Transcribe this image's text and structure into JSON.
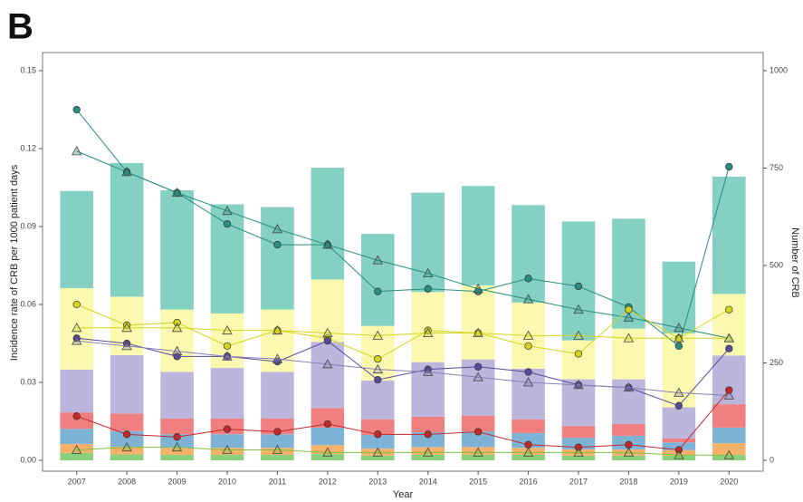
{
  "panel_label": "B",
  "chart_data": {
    "type": "combo",
    "xlabel": "Year",
    "ylabel": "Incidence rate of CRB per 1000 patient days",
    "y2label": "Number of CRB",
    "categories": [
      "2007",
      "2008",
      "2009",
      "2010",
      "2011",
      "2012",
      "2013",
      "2014",
      "2015",
      "2016",
      "2017",
      "2018",
      "2019",
      "2020"
    ],
    "ylim": [
      0,
      0.15
    ],
    "yticks": [
      {
        "value": 0,
        "label": "0.00"
      },
      {
        "value": 0.03,
        "label": "0.03"
      },
      {
        "value": 0.06,
        "label": "0.06"
      },
      {
        "value": 0.09,
        "label": "0.09"
      },
      {
        "value": 0.12,
        "label": "0.12"
      },
      {
        "value": 0.15,
        "label": "0.15"
      }
    ],
    "y2lim": [
      0,
      1000
    ],
    "y2ticks": [
      0,
      250,
      500,
      750,
      1000
    ],
    "bar_series": [
      {
        "color": "#8bd17c",
        "axis": "y2",
        "values": [
          19,
          15,
          14,
          14,
          14,
          16,
          12,
          14,
          14,
          14,
          12,
          12,
          12,
          14
        ]
      },
      {
        "color": "#f6b26b",
        "axis": "y2",
        "values": [
          23,
          20,
          18,
          18,
          18,
          23,
          18,
          20,
          20,
          18,
          16,
          16,
          14,
          30
        ]
      },
      {
        "color": "#7fb3d5",
        "axis": "y2",
        "values": [
          39,
          40,
          35,
          35,
          35,
          45,
          35,
          38,
          40,
          38,
          30,
          35,
          20,
          40
        ]
      },
      {
        "color": "#f08080",
        "axis": "y2",
        "values": [
          42,
          45,
          40,
          40,
          40,
          50,
          40,
          40,
          40,
          35,
          30,
          30,
          10,
          60
        ]
      },
      {
        "color": "#bcb6dc",
        "axis": "y2",
        "values": [
          110,
          150,
          120,
          130,
          120,
          170,
          100,
          140,
          145,
          130,
          120,
          115,
          80,
          125
        ]
      },
      {
        "color": "#fbf9b0",
        "axis": "y2",
        "values": [
          209,
          150,
          160,
          140,
          160,
          160,
          140,
          180,
          190,
          170,
          100,
          130,
          190,
          158
        ]
      },
      {
        "color": "#84d0c2",
        "axis": "y2",
        "values": [
          249,
          343,
          306,
          280,
          263,
          287,
          236,
          255,
          255,
          250,
          305,
          282,
          184,
          301
        ]
      }
    ],
    "line_series": [
      {
        "color": "#2a8c7e",
        "marker": "circle",
        "values": [
          0.135,
          0.111,
          0.103,
          0.091,
          0.083,
          0.083,
          0.065,
          0.066,
          0.065,
          0.07,
          0.067,
          0.059,
          0.044,
          0.113
        ]
      },
      {
        "color": "#2a8c7e",
        "marker": "triangle",
        "values": [
          0.119,
          0.111,
          0.103,
          0.096,
          0.089,
          0.083,
          0.077,
          0.072,
          0.066,
          0.062,
          0.058,
          0.055,
          0.051,
          0.047
        ]
      },
      {
        "color": "#d4d41e",
        "marker": "circle",
        "values": [
          0.06,
          0.052,
          0.053,
          0.044,
          0.05,
          0.047,
          0.039,
          0.05,
          0.049,
          0.044,
          0.041,
          0.058,
          0.047,
          0.058
        ]
      },
      {
        "color": "#d4d41e",
        "marker": "triangle",
        "values": [
          0.051,
          0.051,
          0.051,
          0.05,
          0.05,
          0.049,
          0.048,
          0.049,
          0.049,
          0.048,
          0.048,
          0.047,
          0.047,
          0.047
        ]
      },
      {
        "color": "#574a9c",
        "marker": "circle",
        "values": [
          0.047,
          0.045,
          0.04,
          0.04,
          0.038,
          0.046,
          0.031,
          0.035,
          0.036,
          0.034,
          0.029,
          0.028,
          0.021,
          0.043
        ]
      },
      {
        "color": "#8880b8",
        "marker": "triangle",
        "values": [
          0.046,
          0.044,
          0.042,
          0.04,
          0.039,
          0.037,
          0.035,
          0.034,
          0.032,
          0.03,
          0.029,
          0.028,
          0.026,
          0.025
        ]
      },
      {
        "color": "#c62828",
        "marker": "circle",
        "values": [
          0.017,
          0.01,
          0.009,
          0.012,
          0.011,
          0.014,
          0.01,
          0.01,
          0.011,
          0.006,
          0.005,
          0.006,
          0.004,
          0.027
        ]
      },
      {
        "color": "#7cc242",
        "marker": "triangle",
        "values": [
          0.004,
          0.005,
          0.005,
          0.004,
          0.004,
          0.003,
          0.003,
          0.003,
          0.003,
          0.003,
          0.003,
          0.003,
          0.002,
          0.002
        ]
      }
    ]
  }
}
